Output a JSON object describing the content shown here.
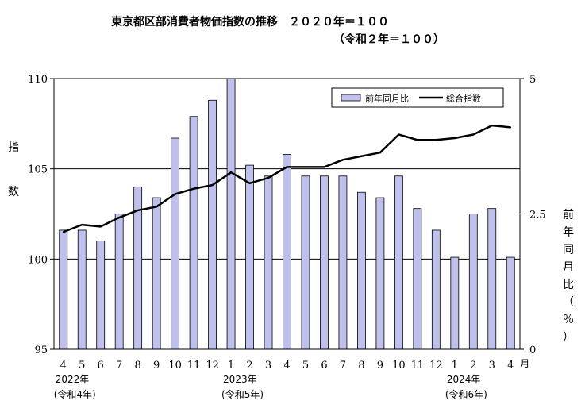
{
  "chart_data": {
    "type": "bar+line",
    "title_line1": "東京都区部消費者物価指数の推移　２０２０年＝１００",
    "title_line2": "（令和２年＝１００）",
    "categories": [
      "4",
      "5",
      "6",
      "7",
      "8",
      "9",
      "10",
      "11",
      "12",
      "1",
      "2",
      "3",
      "4",
      "5",
      "6",
      "7",
      "8",
      "9",
      "10",
      "11",
      "12",
      "1",
      "2",
      "3",
      "4"
    ],
    "month_unit": "月",
    "year_labels": [
      {
        "index": 0,
        "year": "2022年",
        "era": "(令和4年)"
      },
      {
        "index": 9,
        "year": "2023年",
        "era": "(令和5年)"
      },
      {
        "index": 21,
        "year": "2024年",
        "era": "(令和6年)"
      }
    ],
    "series": [
      {
        "name": "前年同月比",
        "type": "bar",
        "axis": "right",
        "color": "#bfc0ec",
        "values": [
          2.2,
          2.2,
          2.0,
          2.5,
          3.0,
          2.8,
          3.9,
          4.3,
          4.6,
          5.0,
          3.4,
          3.2,
          3.6,
          3.2,
          3.2,
          3.2,
          2.9,
          2.8,
          3.2,
          2.6,
          2.2,
          1.7,
          2.5,
          2.6,
          1.7
        ]
      },
      {
        "name": "総合指数",
        "type": "line",
        "axis": "left",
        "color": "#000000",
        "values": [
          101.5,
          101.9,
          101.8,
          102.3,
          102.7,
          102.9,
          103.6,
          103.9,
          104.1,
          104.8,
          104.2,
          104.5,
          105.1,
          105.1,
          105.1,
          105.5,
          105.7,
          105.9,
          106.9,
          106.6,
          106.6,
          106.7,
          106.9,
          107.4,
          107.3
        ]
      }
    ],
    "left_axis": {
      "label": "指数",
      "min": 95,
      "max": 110,
      "ticks": [
        "95",
        "100",
        "105",
        "110"
      ]
    },
    "right_axis": {
      "label": "前年同月比（％）",
      "min": 0,
      "max": 5,
      "ticks": [
        "0",
        "2.5",
        "5"
      ]
    },
    "gridlines_left": [
      100,
      105
    ],
    "legend_position": "top-right"
  }
}
